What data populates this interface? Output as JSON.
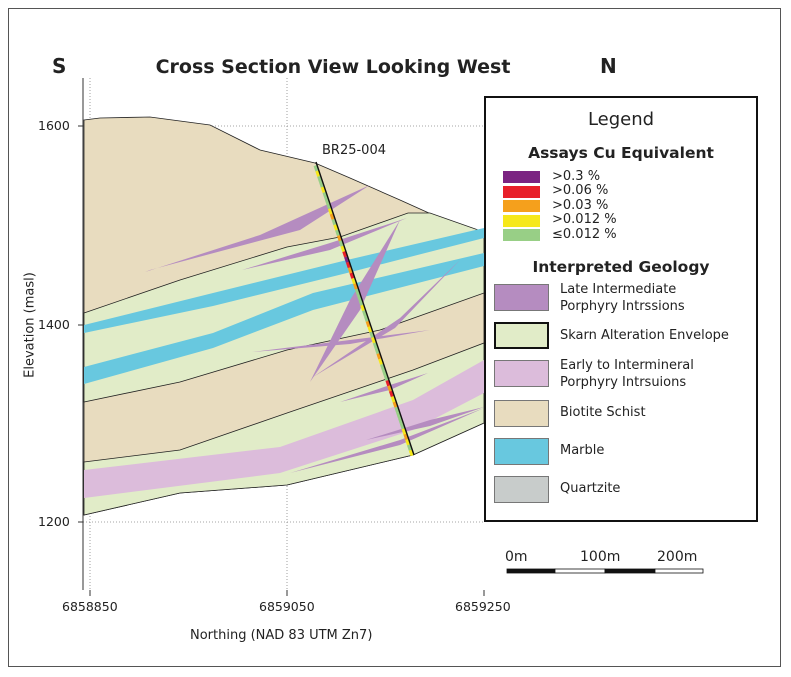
{
  "title": "Cross Section View Looking West",
  "direction_left": "S",
  "direction_right": "N",
  "axes": {
    "ylabel": "Elevation (masl)",
    "xlabel": "Northing (NAD 83 UTM Zn7)",
    "yticks": [
      "1600",
      "1400",
      "1200"
    ],
    "xticks": [
      "6858850",
      "6859050",
      "6859250"
    ]
  },
  "drillhole": {
    "name": "BR25-004",
    "assay_classes_top_to_bottom": [
      4,
      3,
      4,
      4,
      3,
      4,
      4,
      4,
      3,
      2,
      4,
      3,
      4,
      2,
      4,
      3,
      1,
      0,
      1,
      2,
      1,
      3,
      2,
      4,
      4,
      4,
      3,
      4,
      4,
      2,
      3,
      4,
      3,
      4,
      4,
      2,
      3,
      4,
      4,
      4,
      1,
      2,
      1,
      3,
      2,
      4,
      4,
      4,
      4,
      3,
      2,
      3,
      4,
      3
    ]
  },
  "legend": {
    "title": "Legend",
    "assays_title": "Assays Cu Equivalent",
    "assays": [
      {
        "label": ">0.3 %",
        "color": "#7b2482"
      },
      {
        "label": ">0.06 %",
        "color": "#e8202a"
      },
      {
        "label": ">0.03 %",
        "color": "#f5a01c"
      },
      {
        "label": ">0.012 %",
        "color": "#f6e81a"
      },
      {
        "label": "≤0.012 %",
        "color": "#98cf86"
      }
    ],
    "geology_title": "Interpreted Geology",
    "geology": [
      {
        "label": "Late Intermediate\nPorphyry Intrssions",
        "line1": "Late Intermediate",
        "line2": "Porphyry Intrssions",
        "color": "#b58cc0"
      },
      {
        "label": "Skarn Alteration Envelope",
        "line1": "Skarn Alteration Envelope",
        "color": "#e1ecc8"
      },
      {
        "label": "Early to Intermineral\nPorphyry Intrsuions",
        "line1": "Early to Intermineral",
        "line2": "Porphyry Intrsuions",
        "color": "#dcbcdb"
      },
      {
        "label": "Biotite Schist",
        "line1": "Biotite Schist",
        "color": "#e8dcbf"
      },
      {
        "label": "Marble",
        "line1": "Marble",
        "color": "#68c8df"
      },
      {
        "label": "Quartzite",
        "line1": "Quartzite",
        "color": "#c8cccb"
      }
    ]
  },
  "scale_bar": {
    "labels": [
      "0m",
      "100m",
      "200m"
    ]
  }
}
